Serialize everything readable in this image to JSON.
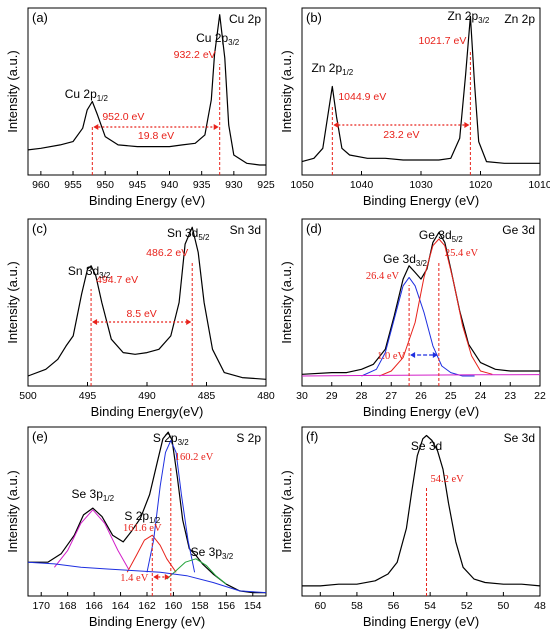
{
  "colors": {
    "axis": "#000000",
    "spectrum": "#000000",
    "annotation": "#e8221b",
    "fit_blue": "#1e2fe0",
    "fit_red": "#e8221b",
    "fit_magenta": "#d21fc9",
    "fit_green": "#22a33a",
    "background_line": "#1e2fe0",
    "arrow_blue": "#1e2fe0"
  },
  "chart_data": [
    {
      "type": "line",
      "panel_label": "(a)",
      "corner_label": "Cu 2p",
      "xlabel": "Binding Energy (eV)",
      "ylabel": "Intensity (a.u.)",
      "xlim": [
        962,
        925
      ],
      "xticks": [
        960,
        955,
        950,
        945,
        940,
        935,
        930,
        925
      ],
      "peaks": [
        {
          "label": "Cu 2p",
          "sub": "1/2",
          "pos_label": "952.0 eV",
          "x": 952.0
        },
        {
          "label": "Cu 2p",
          "sub": "3/2",
          "pos_label": "932.2 eV",
          "x": 932.2
        }
      ],
      "separation": {
        "text": "19.8 eV",
        "from": 952.0,
        "to": 932.2
      },
      "series": [
        {
          "x": [
            962,
            960,
            957,
            955,
            953.5,
            952.8,
            952.0,
            951.2,
            950,
            948,
            945,
            942,
            940,
            938,
            936,
            934.5,
            933.5,
            933.0,
            932.2,
            931.4,
            930.8,
            930,
            928,
            926,
            925
          ],
          "y": [
            0.15,
            0.16,
            0.18,
            0.2,
            0.28,
            0.39,
            0.44,
            0.36,
            0.23,
            0.18,
            0.17,
            0.17,
            0.17,
            0.18,
            0.19,
            0.24,
            0.45,
            0.72,
            0.96,
            0.7,
            0.3,
            0.12,
            0.07,
            0.06,
            0.06
          ]
        }
      ]
    },
    {
      "type": "line",
      "panel_label": "(b)",
      "corner_label": "Zn 2p",
      "xlabel": "Binding Energy (eV)",
      "ylabel": "Intensity (a.u.)",
      "xlim": [
        1050,
        1010
      ],
      "xticks": [
        1050,
        1040,
        1030,
        1020,
        1010
      ],
      "peaks": [
        {
          "label": "Zn 2p",
          "sub": "1/2",
          "pos_label": "1044.9 eV",
          "x": 1044.9
        },
        {
          "label": "Zn 2p",
          "sub": "3/2",
          "pos_label": "1021.7 eV",
          "x": 1021.7
        }
      ],
      "separation": {
        "text": "23.2 eV",
        "from": 1044.9,
        "to": 1021.7
      },
      "series": [
        {
          "x": [
            1050,
            1048,
            1046.5,
            1045.6,
            1044.9,
            1044.2,
            1043.3,
            1042,
            1039,
            1036,
            1033,
            1030,
            1027,
            1025,
            1023.5,
            1022.5,
            1021.7,
            1021.0,
            1020.3,
            1019,
            1016,
            1013,
            1010
          ],
          "y": [
            0.08,
            0.1,
            0.16,
            0.37,
            0.53,
            0.35,
            0.16,
            0.12,
            0.1,
            0.1,
            0.09,
            0.09,
            0.09,
            0.1,
            0.22,
            0.6,
            0.95,
            0.55,
            0.2,
            0.08,
            0.07,
            0.07,
            0.07
          ]
        }
      ]
    },
    {
      "type": "line",
      "panel_label": "(c)",
      "corner_label": "Sn 3d",
      "xlabel": "Binding Energy(eV)",
      "ylabel": "Intensity (a.u.)",
      "xlim": [
        500,
        480
      ],
      "xticks": [
        500,
        495,
        490,
        485,
        480
      ],
      "peaks": [
        {
          "label": "Sn 3d",
          "sub": "3/2",
          "pos_label": "494.7 eV",
          "x": 494.7
        },
        {
          "label": "Sn 3d",
          "sub": "5/2",
          "pos_label": "486.2 eV",
          "x": 486.2
        }
      ],
      "separation": {
        "text": "8.5 eV",
        "from": 494.7,
        "to": 486.2
      },
      "series": [
        {
          "x": [
            500,
            498.5,
            497.5,
            496.8,
            496.2,
            495.5,
            495.0,
            494.7,
            494.3,
            493.8,
            493,
            492,
            491,
            490,
            489,
            488,
            487.3,
            486.8,
            486.2,
            485.7,
            485.2,
            484.5,
            483.5,
            482,
            480
          ],
          "y": [
            0.06,
            0.1,
            0.16,
            0.24,
            0.3,
            0.55,
            0.7,
            0.72,
            0.66,
            0.5,
            0.28,
            0.2,
            0.19,
            0.2,
            0.22,
            0.3,
            0.5,
            0.85,
            0.95,
            0.8,
            0.5,
            0.22,
            0.08,
            0.05,
            0.04
          ]
        }
      ]
    },
    {
      "type": "line",
      "panel_label": "(d)",
      "corner_label": "Ge 3d",
      "xlabel": "Binding Energy (eV)",
      "ylabel": "Intensity (a.u.)",
      "xlim": [
        30,
        22
      ],
      "xticks": [
        30,
        29,
        28,
        27,
        26,
        25,
        24,
        23,
        22
      ],
      "peaks": [
        {
          "label": "Ge 3d",
          "sub": "3/2",
          "pos_label": "26.4 eV",
          "x": 26.4
        },
        {
          "label": "Ge 3d",
          "sub": "5/2",
          "pos_label": "25.4 eV",
          "x": 25.4
        }
      ],
      "separation": {
        "text": "1.0 eV",
        "from": 26.4,
        "to": 25.4
      },
      "series": [
        {
          "x": [
            30,
            29,
            28.5,
            28,
            27.6,
            27.2,
            26.9,
            26.6,
            26.4,
            26.2,
            26.0,
            25.8,
            25.6,
            25.4,
            25.2,
            25.0,
            24.7,
            24.4,
            24.0,
            23.5,
            23,
            22.5,
            22
          ],
          "y": [
            0.07,
            0.08,
            0.08,
            0.1,
            0.13,
            0.22,
            0.42,
            0.64,
            0.72,
            0.68,
            0.64,
            0.7,
            0.86,
            0.92,
            0.86,
            0.7,
            0.45,
            0.25,
            0.14,
            0.1,
            0.09,
            0.09,
            0.09
          ]
        },
        {
          "x": [
            28,
            27.5,
            27.2,
            26.9,
            26.6,
            26.4,
            26.2,
            25.9,
            25.6,
            25.3,
            25,
            24.6,
            24.2
          ],
          "y": [
            0.06,
            0.1,
            0.2,
            0.4,
            0.6,
            0.65,
            0.6,
            0.44,
            0.24,
            0.12,
            0.08,
            0.06,
            0.06
          ]
        },
        {
          "x": [
            27.4,
            27,
            26.6,
            26.2,
            25.9,
            25.6,
            25.4,
            25.2,
            24.9,
            24.6,
            24.3,
            24,
            23.6
          ],
          "y": [
            0.06,
            0.09,
            0.17,
            0.38,
            0.65,
            0.84,
            0.88,
            0.84,
            0.62,
            0.36,
            0.18,
            0.09,
            0.07
          ]
        },
        {
          "x": [
            30,
            28,
            26,
            24,
            22
          ],
          "y": [
            0.06,
            0.063,
            0.065,
            0.067,
            0.068
          ]
        }
      ]
    },
    {
      "type": "line",
      "panel_label": "(e)",
      "corner_label": "S 2p",
      "xlabel": "Binding Energy (eV)",
      "ylabel": "Intensity (a.u.)",
      "xlim": [
        171,
        153
      ],
      "xticks": [
        170,
        168,
        166,
        164,
        162,
        160,
        158,
        156,
        154
      ],
      "peaks": [
        {
          "label": "Se 3p",
          "sub": "1/2",
          "pos_label": "",
          "x": 166.1
        },
        {
          "label": "S 2p",
          "sub": "1/2",
          "pos_label": "161.6 eV",
          "x": 161.6
        },
        {
          "label": "S 2p",
          "sub": "3/2",
          "pos_label": "160.2 eV",
          "x": 160.2
        },
        {
          "label": "Se 3p",
          "sub": "3/2",
          "pos_label": "",
          "x": 158.3
        }
      ],
      "separation": {
        "text": "1.4 eV",
        "from": 161.6,
        "to": 160.2
      },
      "series": [
        {
          "x": [
            171,
            169.5,
            168.5,
            167.5,
            166.8,
            166.1,
            165.4,
            164.6,
            163.8,
            163.2,
            162.5,
            161.8,
            161.2,
            160.8,
            160.4,
            160.1,
            159.7,
            159.3,
            158.8,
            158.3,
            157.8,
            157,
            156,
            155,
            154,
            153
          ],
          "y": [
            0.2,
            0.2,
            0.25,
            0.36,
            0.48,
            0.52,
            0.47,
            0.36,
            0.32,
            0.38,
            0.46,
            0.6,
            0.8,
            0.93,
            0.97,
            0.92,
            0.7,
            0.45,
            0.28,
            0.24,
            0.19,
            0.13,
            0.07,
            0.03,
            0.02,
            0.02
          ]
        },
        {
          "x": [
            169,
            168,
            167,
            166.1,
            165.2,
            164.2,
            163.4
          ],
          "y": [
            0.17,
            0.27,
            0.43,
            0.51,
            0.43,
            0.27,
            0.16
          ]
        },
        {
          "x": [
            163.5,
            162.8,
            162.2,
            161.6,
            161,
            160.5,
            159.8
          ],
          "y": [
            0.14,
            0.24,
            0.33,
            0.36,
            0.3,
            0.22,
            0.14
          ]
        },
        {
          "x": [
            162,
            161.5,
            161,
            160.6,
            160.2,
            159.8,
            159.4,
            158.9,
            158.4
          ],
          "y": [
            0.14,
            0.33,
            0.65,
            0.85,
            0.92,
            0.85,
            0.6,
            0.33,
            0.14
          ]
        },
        {
          "x": [
            160.5,
            159.8,
            159.1,
            158.3,
            157.5,
            156.8,
            156
          ],
          "y": [
            0.1,
            0.15,
            0.2,
            0.22,
            0.18,
            0.12,
            0.07
          ]
        },
        {
          "x": [
            171,
            169,
            167,
            165,
            163,
            161,
            159,
            157,
            155,
            153
          ],
          "y": [
            0.2,
            0.19,
            0.17,
            0.16,
            0.15,
            0.14,
            0.12,
            0.08,
            0.03,
            0.02
          ]
        }
      ]
    },
    {
      "type": "line",
      "panel_label": "(f)",
      "corner_label": "Se 3d",
      "xlabel": "Binding Energy (eV)",
      "ylabel": "Intensity (a.u.)",
      "xlim": [
        61,
        48
      ],
      "xticks": [
        60,
        58,
        56,
        54,
        52,
        50,
        48
      ],
      "peaks": [
        {
          "label": "Se 3d",
          "sub": "",
          "pos_label": "54.2 eV",
          "x": 54.2
        }
      ],
      "series": [
        {
          "x": [
            61,
            60,
            59,
            58,
            57,
            56.3,
            55.8,
            55.3,
            55,
            54.7,
            54.4,
            54.2,
            53.9,
            53.6,
            53.3,
            53.0,
            52.6,
            52.2,
            51.6,
            51,
            50,
            49,
            48
          ],
          "y": [
            0.06,
            0.06,
            0.07,
            0.07,
            0.09,
            0.13,
            0.2,
            0.4,
            0.62,
            0.83,
            0.93,
            0.95,
            0.92,
            0.86,
            0.75,
            0.55,
            0.32,
            0.17,
            0.1,
            0.08,
            0.07,
            0.07,
            0.06
          ]
        }
      ]
    }
  ]
}
